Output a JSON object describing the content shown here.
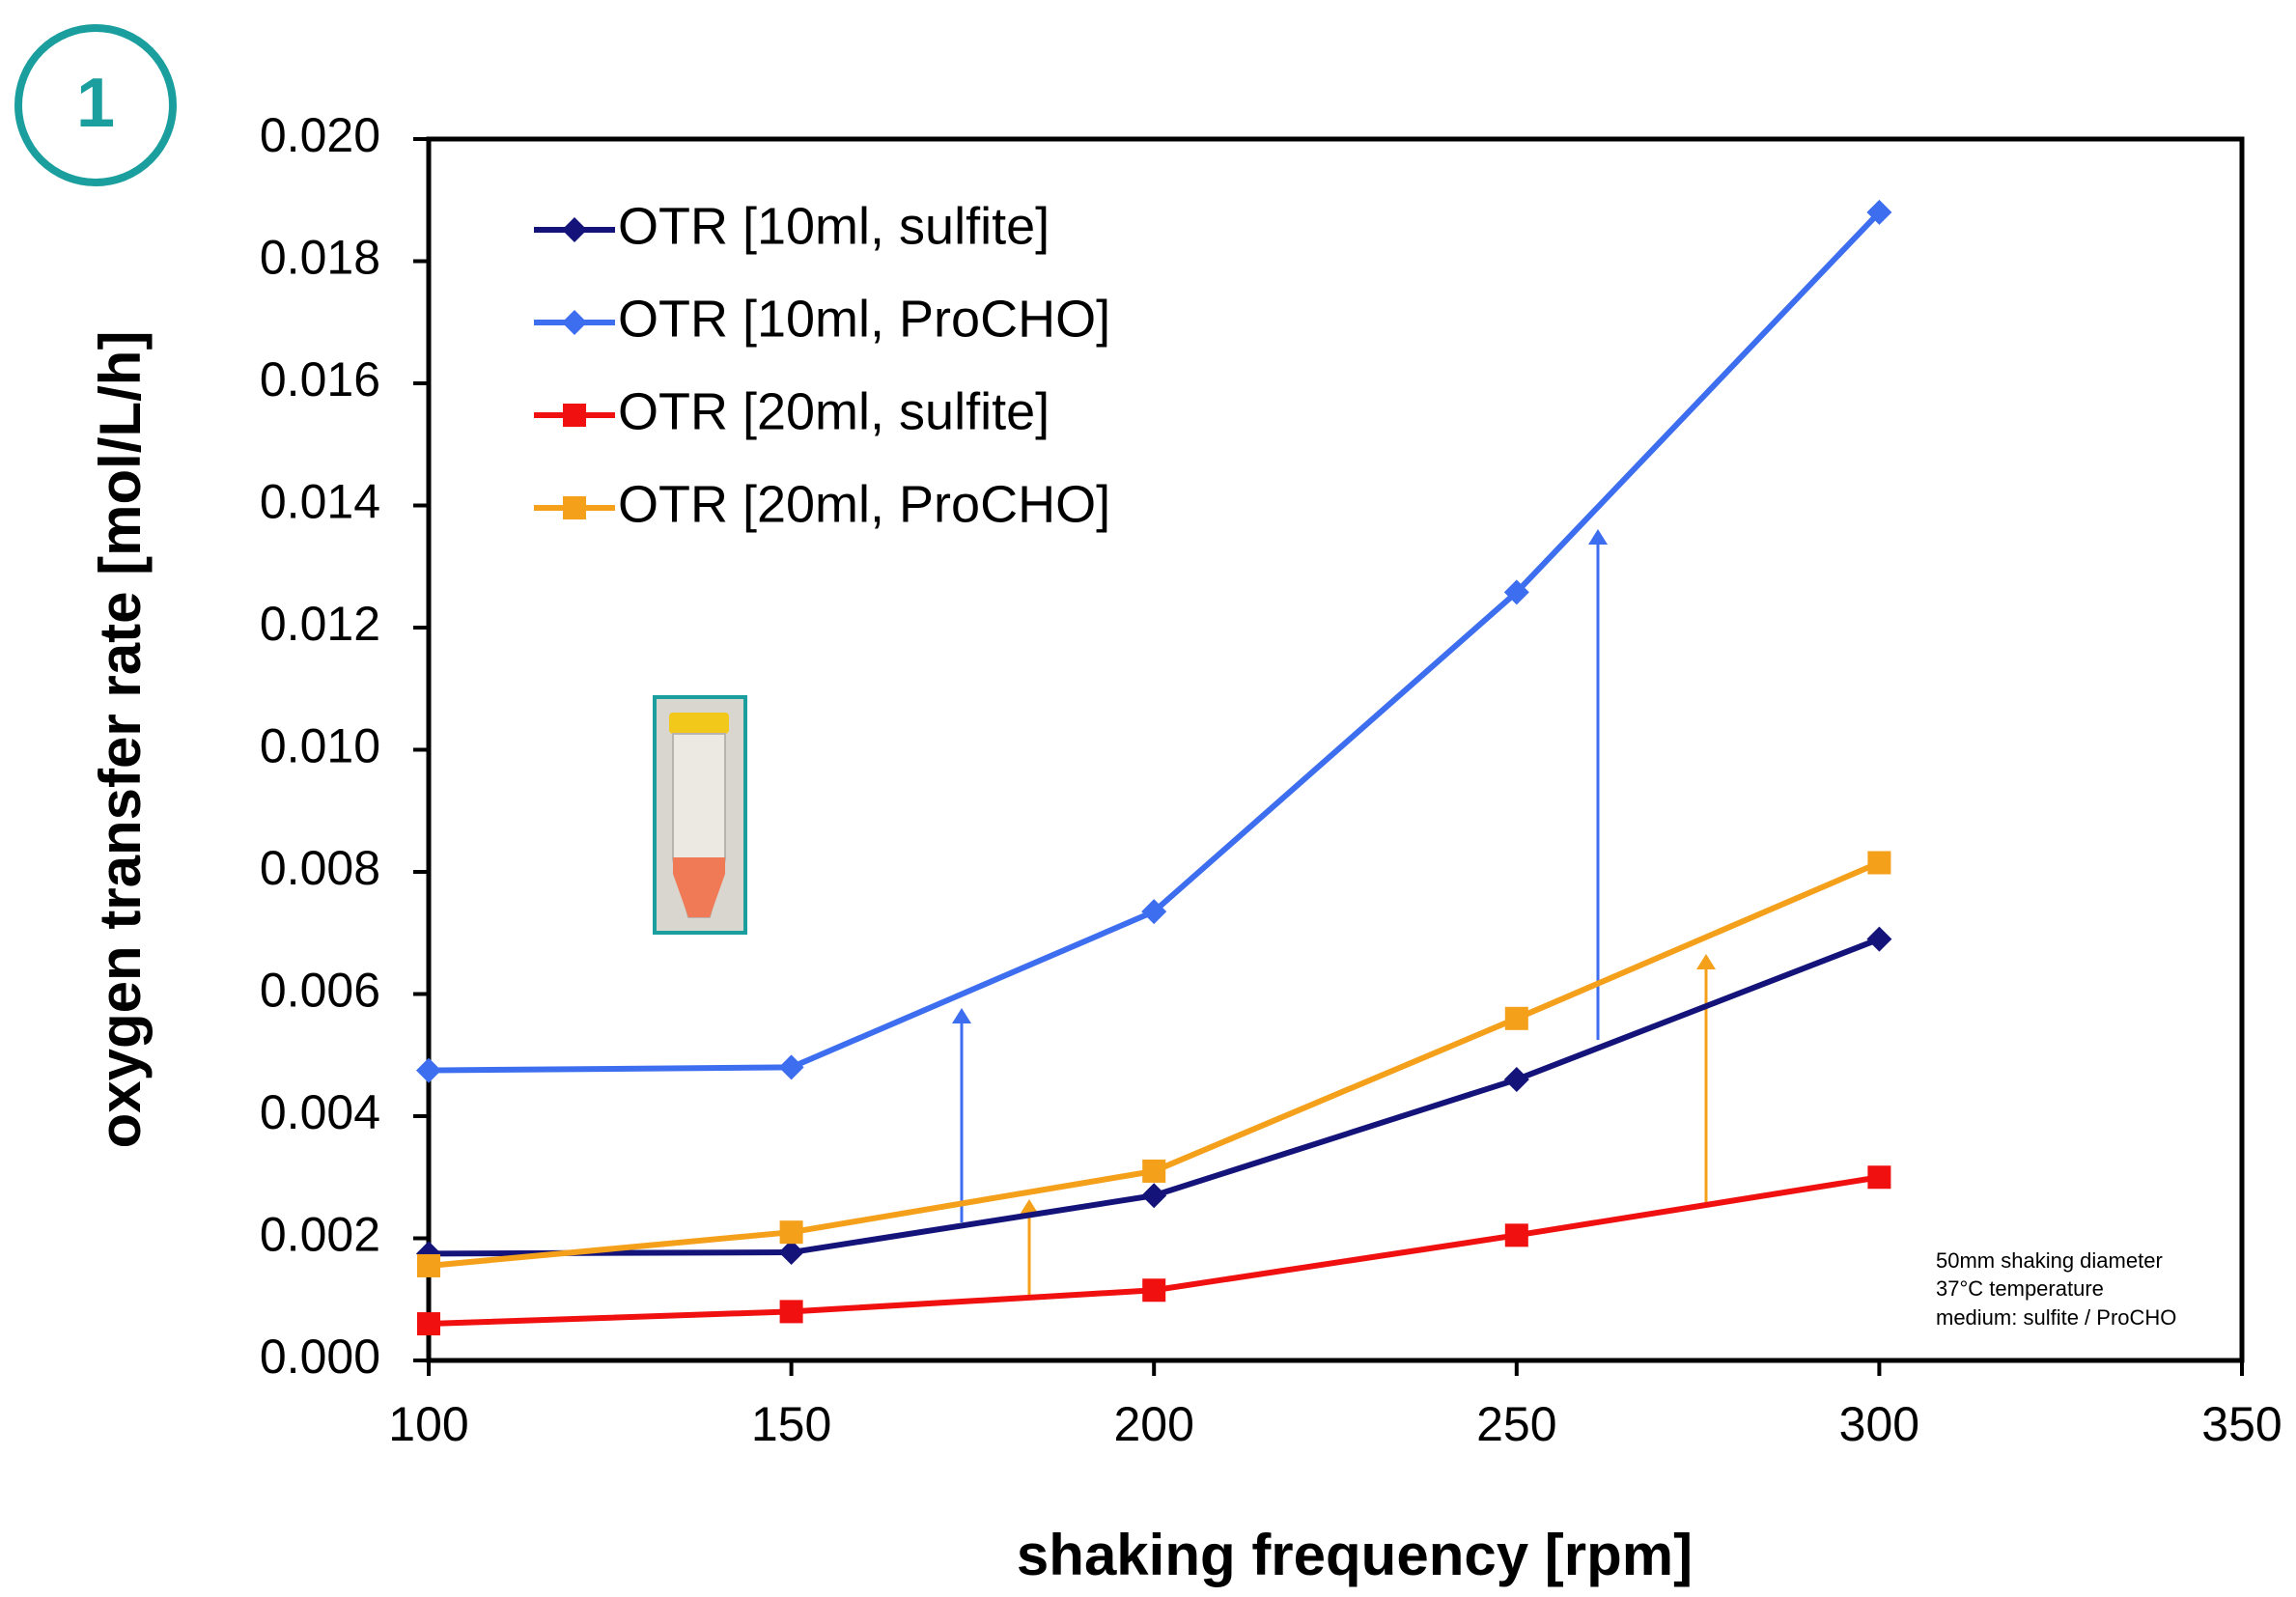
{
  "badge": "1",
  "chart_data": {
    "type": "line",
    "x_label": "shaking frequency  [rpm]",
    "y_label": "oxygen transfer rate  [mol/L/h]",
    "notes": [
      "50mm shaking diameter",
      "37°C temperature",
      "medium: sulfite / ProCHO"
    ],
    "xlim": [
      100,
      350
    ],
    "xticks": [
      100,
      150,
      200,
      250,
      300,
      350
    ],
    "ylim": [
      0,
      0.02
    ],
    "yticks": [
      {
        "value": 0,
        "label": "0.000"
      },
      {
        "value": 0.002,
        "label": "0.002"
      },
      {
        "value": 0.004,
        "label": "0.004"
      },
      {
        "value": 0.006,
        "label": "0.006"
      },
      {
        "value": 0.008,
        "label": "0.008"
      },
      {
        "value": 0.01,
        "label": "0.010"
      },
      {
        "value": 0.012,
        "label": "0.012"
      },
      {
        "value": 0.014,
        "label": "0.014"
      },
      {
        "value": 0.016,
        "label": "0.016"
      },
      {
        "value": 0.018,
        "label": "0.018"
      },
      {
        "value": 0.02,
        "label": "0.020"
      }
    ],
    "grid": false,
    "legend": "upper left",
    "x": [
      100,
      150,
      200,
      250,
      300
    ],
    "series": [
      {
        "name": "OTR [10ml, sulfite]",
        "color": "#14137a",
        "marker": "diamond",
        "values": [
          0.00175,
          0.00177,
          0.0027,
          0.0046,
          0.0069
        ]
      },
      {
        "name": "OTR [10ml, ProCHO]",
        "color": "#3d6ef0",
        "marker": "diamond",
        "values": [
          0.00475,
          0.0048,
          0.00735,
          0.01258,
          0.0188
        ]
      },
      {
        "name": "OTR [20ml, sulfite]",
        "color": "#f01010",
        "marker": "square",
        "values": [
          0.0006,
          0.0008,
          0.00115,
          0.00205,
          0.003
        ]
      },
      {
        "name": "OTR [20ml, ProCHO]",
        "color": "#f5a01a",
        "marker": "square",
        "values": [
          0.00155,
          0.0021,
          0.0031,
          0.0056,
          0.00815
        ]
      }
    ]
  }
}
